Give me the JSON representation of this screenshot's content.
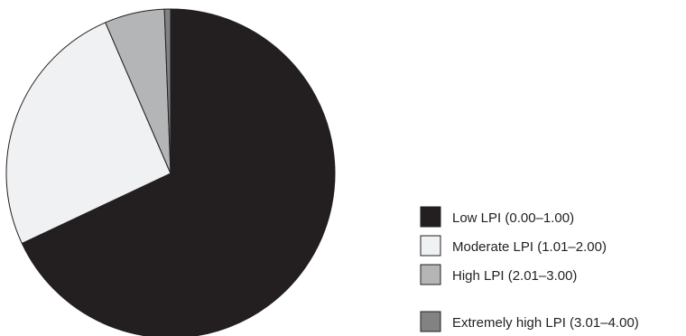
{
  "chart_data": {
    "type": "pie",
    "title": "",
    "legend_position": "right",
    "slices": [
      {
        "label": "Low LPI (0.00–1.00)",
        "value": 68.0,
        "color": "#231f20"
      },
      {
        "label": "Moderate LPI (1.01–2.00)",
        "value": 25.5,
        "color": "#f0f1f2"
      },
      {
        "label": "High LPI (2.01–3.00)",
        "value": 5.9,
        "color": "#b3b5b7"
      },
      {
        "label": "Extremely high LPI (3.01–4.00)",
        "value": 0.6,
        "color": "#808284"
      }
    ]
  }
}
